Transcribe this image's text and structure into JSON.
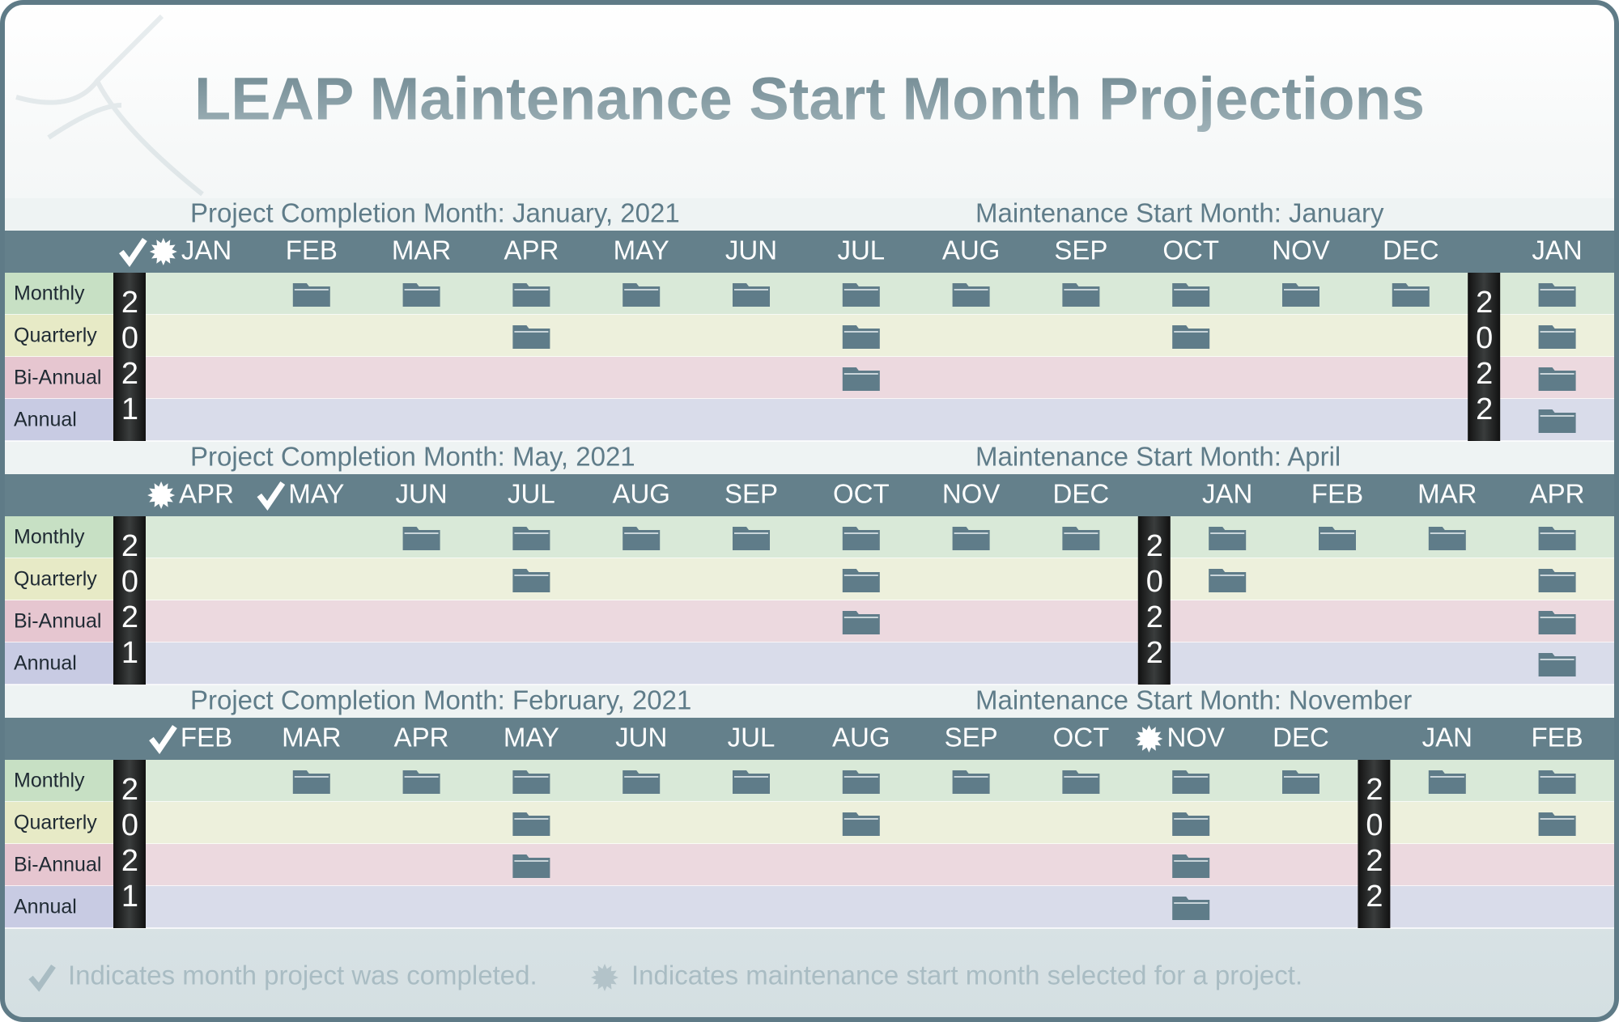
{
  "title": "LEAP Maintenance Start Month Projections",
  "row_labels": [
    "Monthly",
    "Quarterly",
    "Bi-Annual",
    "Annual"
  ],
  "sections": [
    {
      "completion": "Project Completion Month: January, 2021",
      "maintenance": "Maintenance Start Month: January",
      "years": [
        {
          "year": "2021",
          "months": [
            {
              "label": "JAN",
              "completed": true,
              "selected": true
            },
            {
              "label": "FEB"
            },
            {
              "label": "MAR"
            },
            {
              "label": "APR"
            },
            {
              "label": "MAY"
            },
            {
              "label": "JUN"
            },
            {
              "label": "JUL"
            },
            {
              "label": "AUG"
            },
            {
              "label": "SEP"
            },
            {
              "label": "OCT"
            },
            {
              "label": "NOV"
            },
            {
              "label": "DEC"
            }
          ]
        },
        {
          "year": "2022",
          "months": [
            {
              "label": "JAN"
            }
          ]
        }
      ],
      "folders": [
        [
          1,
          2,
          3,
          4,
          5,
          6,
          7,
          8,
          9,
          10,
          11,
          12
        ],
        [
          3,
          6,
          9,
          12
        ],
        [
          6,
          12
        ],
        [
          12
        ]
      ]
    },
    {
      "completion": "Project Completion Month: May, 2021",
      "maintenance": "Maintenance Start Month: April",
      "years": [
        {
          "year": "2021",
          "months": [
            {
              "label": "APR",
              "selected": true
            },
            {
              "label": "MAY",
              "completed": true
            },
            {
              "label": "JUN"
            },
            {
              "label": "JUL"
            },
            {
              "label": "AUG"
            },
            {
              "label": "SEP"
            },
            {
              "label": "OCT"
            },
            {
              "label": "NOV"
            },
            {
              "label": "DEC"
            }
          ]
        },
        {
          "year": "2022",
          "months": [
            {
              "label": "JAN"
            },
            {
              "label": "FEB"
            },
            {
              "label": "MAR"
            },
            {
              "label": "APR"
            }
          ]
        }
      ],
      "folders": [
        [
          2,
          3,
          4,
          5,
          6,
          7,
          8,
          9,
          10,
          11,
          12
        ],
        [
          3,
          6,
          9,
          12
        ],
        [
          6,
          12
        ],
        [
          12
        ]
      ]
    },
    {
      "completion": "Project Completion Month: February, 2021",
      "maintenance": "Maintenance Start Month: November",
      "years": [
        {
          "year": "2021",
          "months": [
            {
              "label": "FEB",
              "completed": true
            },
            {
              "label": "MAR"
            },
            {
              "label": "APR"
            },
            {
              "label": "MAY"
            },
            {
              "label": "JUN"
            },
            {
              "label": "JUL"
            },
            {
              "label": "AUG"
            },
            {
              "label": "SEP"
            },
            {
              "label": "OCT"
            },
            {
              "label": "NOV",
              "selected": true
            },
            {
              "label": "DEC"
            }
          ]
        },
        {
          "year": "2022",
          "months": [
            {
              "label": "JAN"
            },
            {
              "label": "FEB"
            }
          ]
        }
      ],
      "folders": [
        [
          1,
          2,
          3,
          4,
          5,
          6,
          7,
          8,
          9,
          10,
          11,
          12
        ],
        [
          3,
          6,
          9,
          12
        ],
        [
          3,
          9
        ],
        [
          9
        ]
      ]
    }
  ],
  "legend": [
    "Indicates month project was completed.",
    "Indicates maintenance start month selected for a project."
  ]
}
